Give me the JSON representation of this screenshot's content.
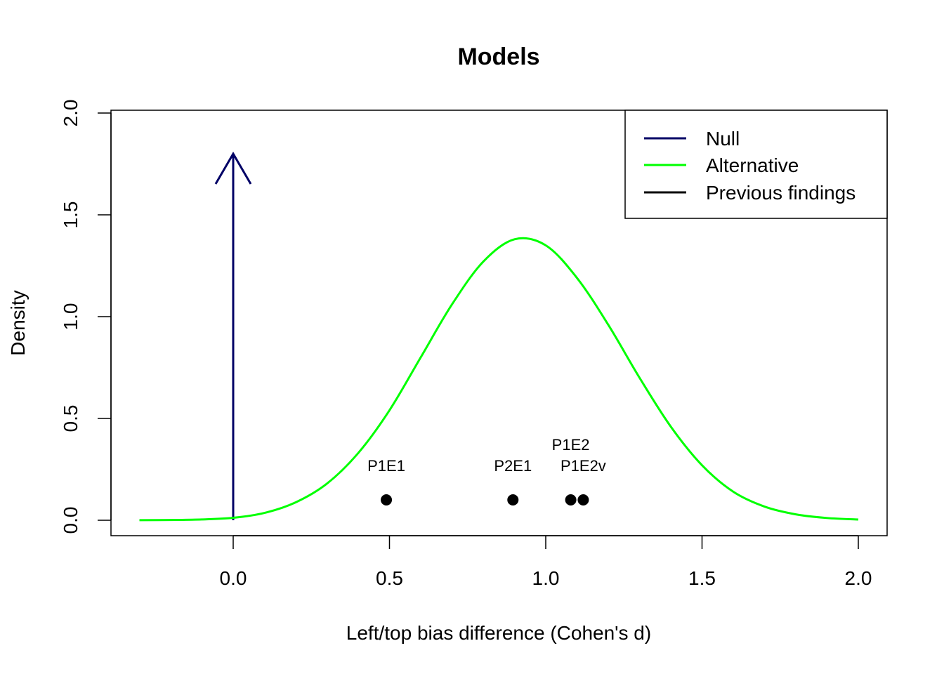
{
  "chart_data": {
    "type": "line",
    "title": "Models",
    "xlabel": "Left/top bias difference (Cohen's d)",
    "ylabel": "Density",
    "xlim": [
      -0.3,
      2.0
    ],
    "ylim": [
      0.0,
      2.0
    ],
    "x_ticks": [
      "0.0",
      "0.5",
      "1.0",
      "1.5",
      "2.0"
    ],
    "y_ticks": [
      "0.0",
      "0.5",
      "1.0",
      "1.5",
      "2.0"
    ],
    "grid": false,
    "legend": {
      "position": "top-right",
      "entries": [
        {
          "label": "Null",
          "color": "#000066"
        },
        {
          "label": "Alternative",
          "color": "#00ff00"
        },
        {
          "label": "Previous findings",
          "color": "#000000"
        }
      ]
    },
    "series": [
      {
        "name": "Null",
        "kind": "arrow",
        "color": "#000066",
        "x": [
          0.0,
          0.0
        ],
        "y": [
          0.0,
          1.8
        ]
      },
      {
        "name": "Alternative",
        "kind": "curve",
        "color": "#00ff00",
        "x": [
          -0.3,
          -0.2,
          -0.1,
          0.0,
          0.1,
          0.2,
          0.3,
          0.4,
          0.5,
          0.6,
          0.7,
          0.8,
          0.9,
          1.0,
          1.1,
          1.2,
          1.3,
          1.4,
          1.5,
          1.6,
          1.7,
          1.8,
          1.9,
          2.0
        ],
        "y": [
          0.0003,
          0.0014,
          0.004,
          0.012,
          0.036,
          0.088,
          0.18,
          0.33,
          0.54,
          0.8,
          1.06,
          1.27,
          1.38,
          1.35,
          1.19,
          0.96,
          0.7,
          0.46,
          0.27,
          0.14,
          0.067,
          0.029,
          0.011,
          0.0036
        ]
      },
      {
        "name": "Previous findings",
        "kind": "points",
        "color": "#000000",
        "points": [
          {
            "label": "P1E1",
            "x": 0.49,
            "y": 0.1
          },
          {
            "label": "P2E1",
            "x": 0.895,
            "y": 0.1
          },
          {
            "label": "P1E2",
            "x": 1.08,
            "y": 0.1
          },
          {
            "label": "P1E2v",
            "x": 1.12,
            "y": 0.1
          }
        ]
      }
    ]
  }
}
